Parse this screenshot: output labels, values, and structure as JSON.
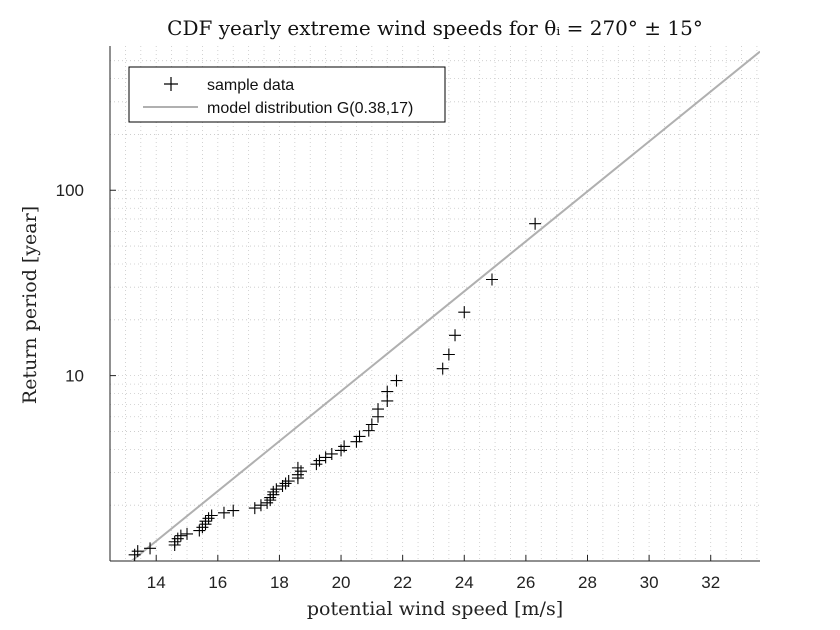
{
  "chart_data": {
    "type": "scatter",
    "title": "CDF yearly extreme wind speeds for θᵢ = 270° ± 15°",
    "xlabel": "potential wind speed [m/s]",
    "ylabel": "Return period [year]",
    "xlim": [
      12.5,
      33.6
    ],
    "ylim": [
      1.0,
      600
    ],
    "yscale": "log",
    "x_ticks": [
      14,
      16,
      18,
      20,
      22,
      24,
      26,
      28,
      30,
      32
    ],
    "y_ticks": [
      10,
      100
    ],
    "y_tick_labels": [
      "10",
      "100"
    ],
    "grid": true,
    "legend_position": "top-left",
    "colors": {
      "sample": "#000000",
      "model": "#b0b0b0",
      "grid": "#c8c8c8"
    },
    "series": [
      {
        "name": "sample data",
        "marker": "plus",
        "points": [
          [
            13.3,
            1.08
          ],
          [
            13.4,
            1.13
          ],
          [
            13.8,
            1.17
          ],
          [
            14.6,
            1.22
          ],
          [
            14.6,
            1.27
          ],
          [
            14.7,
            1.32
          ],
          [
            14.8,
            1.37
          ],
          [
            15.0,
            1.4
          ],
          [
            15.4,
            1.46
          ],
          [
            15.5,
            1.52
          ],
          [
            15.6,
            1.58
          ],
          [
            15.6,
            1.64
          ],
          [
            15.7,
            1.7
          ],
          [
            15.8,
            1.76
          ],
          [
            16.2,
            1.82
          ],
          [
            16.5,
            1.87
          ],
          [
            17.2,
            1.93
          ],
          [
            17.4,
            2.0
          ],
          [
            17.6,
            2.06
          ],
          [
            17.7,
            2.13
          ],
          [
            17.7,
            2.2
          ],
          [
            17.8,
            2.28
          ],
          [
            17.8,
            2.36
          ],
          [
            17.9,
            2.44
          ],
          [
            18.1,
            2.54
          ],
          [
            18.2,
            2.62
          ],
          [
            18.3,
            2.7
          ],
          [
            18.6,
            2.8
          ],
          [
            18.6,
            2.92
          ],
          [
            18.7,
            3.05
          ],
          [
            18.6,
            3.18
          ],
          [
            19.2,
            3.33
          ],
          [
            19.3,
            3.48
          ],
          [
            19.5,
            3.62
          ],
          [
            19.7,
            3.78
          ],
          [
            20.0,
            3.95
          ],
          [
            20.1,
            4.15
          ],
          [
            20.5,
            4.4
          ],
          [
            20.6,
            4.7
          ],
          [
            20.9,
            5.05
          ],
          [
            21.0,
            5.45
          ],
          [
            21.2,
            6.0
          ],
          [
            21.2,
            6.6
          ],
          [
            21.5,
            7.3
          ],
          [
            21.5,
            8.2
          ],
          [
            21.8,
            9.4
          ],
          [
            23.3,
            10.9
          ],
          [
            23.5,
            13.0
          ],
          [
            23.7,
            16.5
          ],
          [
            24.0,
            22.0
          ],
          [
            24.9,
            33.0
          ],
          [
            26.3,
            66.0
          ]
        ]
      },
      {
        "name": "model distribution G(0.38,17)",
        "line_x": [
          13.2,
          33.6
        ],
        "line_y": [
          1.0,
          560
        ]
      }
    ]
  }
}
